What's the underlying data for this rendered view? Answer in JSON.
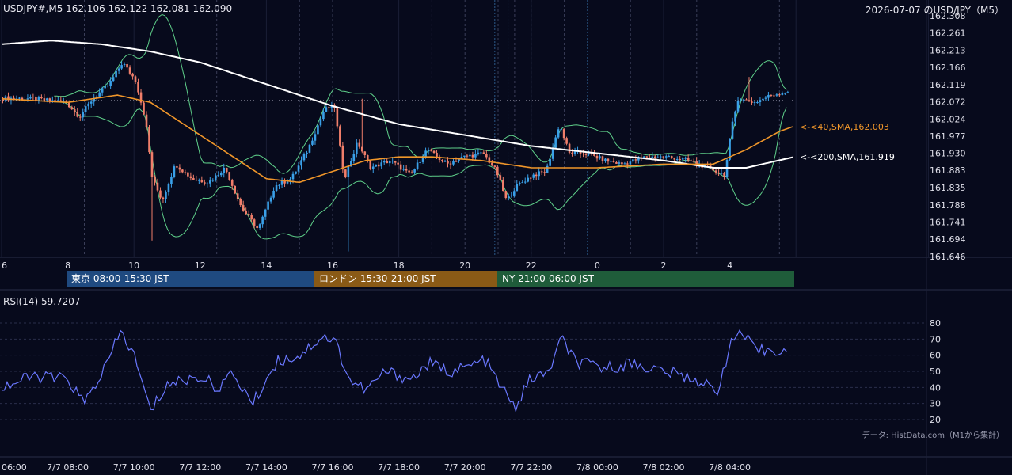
{
  "header": {
    "quote": "USDJPY#,M5 162.106 162.122 162.081 162.090",
    "title_right": "2026-07-07 のUSD/JPY（M5）"
  },
  "sessions": [
    {
      "label": "東京 08:00-15:30 JST",
      "color": "#1f4a80"
    },
    {
      "label": "ロンドン 15:30-21:00 JST",
      "color": "#8a5a16"
    },
    {
      "label": "NY 21:00-06:00 JST",
      "color": "#1f5c3a"
    }
  ],
  "rsi_label": "RSI(14) 59.7207",
  "credit": "データ: HistData.com（M1から集計）",
  "colors": {
    "background": "#070a1c",
    "bull": "#3aa0e8",
    "bear": "#f07e6a",
    "sma40": "#f0962a",
    "sma200": "#ffffff",
    "bands": "#5fd08a",
    "rsi": "#6a78ff"
  },
  "chart_data": {
    "type": "candlestick",
    "price_axis": {
      "min": 161.646,
      "max": 162.308,
      "ticks": [
        "162.308",
        "162.261",
        "162.213",
        "162.166",
        "162.119",
        "162.072",
        "162.024",
        "161.977",
        "161.930",
        "161.883",
        "161.835",
        "161.788",
        "161.741",
        "161.694",
        "161.646"
      ]
    },
    "hour_axis": {
      "labels": [
        "6",
        "8",
        "10",
        "12",
        "14",
        "16",
        "18",
        "20",
        "22",
        "0",
        "2",
        "4"
      ]
    },
    "time_axis": {
      "labels": [
        "06:00",
        "7/7 08:00",
        "7/7 10:00",
        "7/7 12:00",
        "7/7 14:00",
        "7/7 16:00",
        "7/7 18:00",
        "7/7 20:00",
        "7/7 22:00",
        "7/8 00:00",
        "7/8 02:00",
        "7/8 04:00"
      ]
    },
    "last_close": 162.09,
    "ohlc_anchors": [
      [
        6.0,
        162.082
      ],
      [
        7.0,
        162.08
      ],
      [
        8.0,
        162.07
      ],
      [
        8.4,
        162.03
      ],
      [
        8.8,
        162.08
      ],
      [
        9.3,
        162.12
      ],
      [
        9.7,
        162.18
      ],
      [
        10.1,
        162.13
      ],
      [
        10.4,
        162.02
      ],
      [
        10.6,
        161.86
      ],
      [
        10.9,
        161.8
      ],
      [
        11.3,
        161.9
      ],
      [
        11.8,
        161.86
      ],
      [
        12.3,
        161.85
      ],
      [
        12.8,
        161.89
      ],
      [
        13.3,
        161.78
      ],
      [
        13.8,
        161.72
      ],
      [
        14.3,
        161.84
      ],
      [
        14.8,
        161.86
      ],
      [
        15.3,
        161.94
      ],
      [
        15.8,
        162.05
      ],
      [
        16.1,
        162.06
      ],
      [
        16.4,
        161.86
      ],
      [
        16.8,
        161.96
      ],
      [
        17.2,
        161.89
      ],
      [
        17.8,
        161.91
      ],
      [
        18.4,
        161.87
      ],
      [
        18.9,
        161.94
      ],
      [
        19.5,
        161.9
      ],
      [
        20.0,
        161.92
      ],
      [
        20.6,
        161.93
      ],
      [
        21.0,
        161.88
      ],
      [
        21.3,
        161.8
      ],
      [
        21.6,
        161.84
      ],
      [
        22.1,
        161.87
      ],
      [
        22.5,
        161.88
      ],
      [
        22.9,
        162.01
      ],
      [
        23.2,
        161.93
      ],
      [
        23.7,
        161.93
      ],
      [
        24.3,
        161.91
      ],
      [
        24.8,
        161.9
      ],
      [
        25.5,
        161.92
      ],
      [
        26.2,
        161.92
      ],
      [
        26.8,
        161.91
      ],
      [
        27.4,
        161.89
      ],
      [
        27.9,
        161.87
      ],
      [
        28.1,
        162.0
      ],
      [
        28.3,
        162.08
      ],
      [
        28.8,
        162.07
      ],
      [
        29.3,
        162.09
      ],
      [
        29.8,
        162.1
      ]
    ],
    "sma40_anchors": [
      [
        6.0,
        162.08
      ],
      [
        8.0,
        162.07
      ],
      [
        9.5,
        162.09
      ],
      [
        10.5,
        162.07
      ],
      [
        11.5,
        162.01
      ],
      [
        13.0,
        161.92
      ],
      [
        14.0,
        161.86
      ],
      [
        15.0,
        161.85
      ],
      [
        16.0,
        161.88
      ],
      [
        17.0,
        161.91
      ],
      [
        18.0,
        161.92
      ],
      [
        19.0,
        161.92
      ],
      [
        20.5,
        161.91
      ],
      [
        22.0,
        161.89
      ],
      [
        24.0,
        161.89
      ],
      [
        26.0,
        161.9
      ],
      [
        27.5,
        161.9
      ],
      [
        28.5,
        161.94
      ],
      [
        29.5,
        161.99
      ],
      [
        29.9,
        162.003
      ]
    ],
    "sma200_anchors": [
      [
        6.0,
        162.23
      ],
      [
        7.5,
        162.24
      ],
      [
        9.0,
        162.23
      ],
      [
        10.5,
        162.21
      ],
      [
        12.0,
        162.18
      ],
      [
        14.0,
        162.12
      ],
      [
        16.0,
        162.06
      ],
      [
        18.0,
        162.01
      ],
      [
        20.0,
        161.98
      ],
      [
        22.0,
        161.95
      ],
      [
        24.0,
        161.93
      ],
      [
        26.0,
        161.91
      ],
      [
        27.5,
        161.89
      ],
      [
        28.5,
        161.89
      ],
      [
        29.9,
        161.919
      ]
    ],
    "sma_labels": {
      "sma40": "<-<40,SMA,162.003",
      "sma200": "<-<200,SMA,161.919"
    },
    "rsi_axis": {
      "min": 20,
      "max": 80,
      "ticks": [
        "80",
        "70",
        "60",
        "50",
        "40",
        "30",
        "20"
      ]
    },
    "rsi_anchors": [
      [
        6.0,
        40
      ],
      [
        7.0,
        47
      ],
      [
        8.0,
        45
      ],
      [
        8.5,
        30
      ],
      [
        9.2,
        55
      ],
      [
        9.6,
        75
      ],
      [
        10.0,
        60
      ],
      [
        10.5,
        25
      ],
      [
        11.0,
        42
      ],
      [
        12.0,
        47
      ],
      [
        12.5,
        40
      ],
      [
        13.0,
        48
      ],
      [
        13.6,
        30
      ],
      [
        14.3,
        56
      ],
      [
        15.0,
        60
      ],
      [
        15.7,
        72
      ],
      [
        16.1,
        68
      ],
      [
        16.5,
        45
      ],
      [
        17.0,
        38
      ],
      [
        17.6,
        50
      ],
      [
        18.4,
        45
      ],
      [
        18.9,
        55
      ],
      [
        19.5,
        50
      ],
      [
        20.0,
        52
      ],
      [
        20.6,
        57
      ],
      [
        21.1,
        40
      ],
      [
        21.5,
        27
      ],
      [
        22.0,
        46
      ],
      [
        22.5,
        48
      ],
      [
        22.9,
        70
      ],
      [
        23.4,
        55
      ],
      [
        24.3,
        52
      ],
      [
        25.0,
        55
      ],
      [
        26.0,
        50
      ],
      [
        27.0,
        45
      ],
      [
        27.6,
        37
      ],
      [
        28.0,
        65
      ],
      [
        28.3,
        75
      ],
      [
        28.8,
        62
      ],
      [
        29.3,
        64
      ],
      [
        29.9,
        61
      ]
    ]
  }
}
